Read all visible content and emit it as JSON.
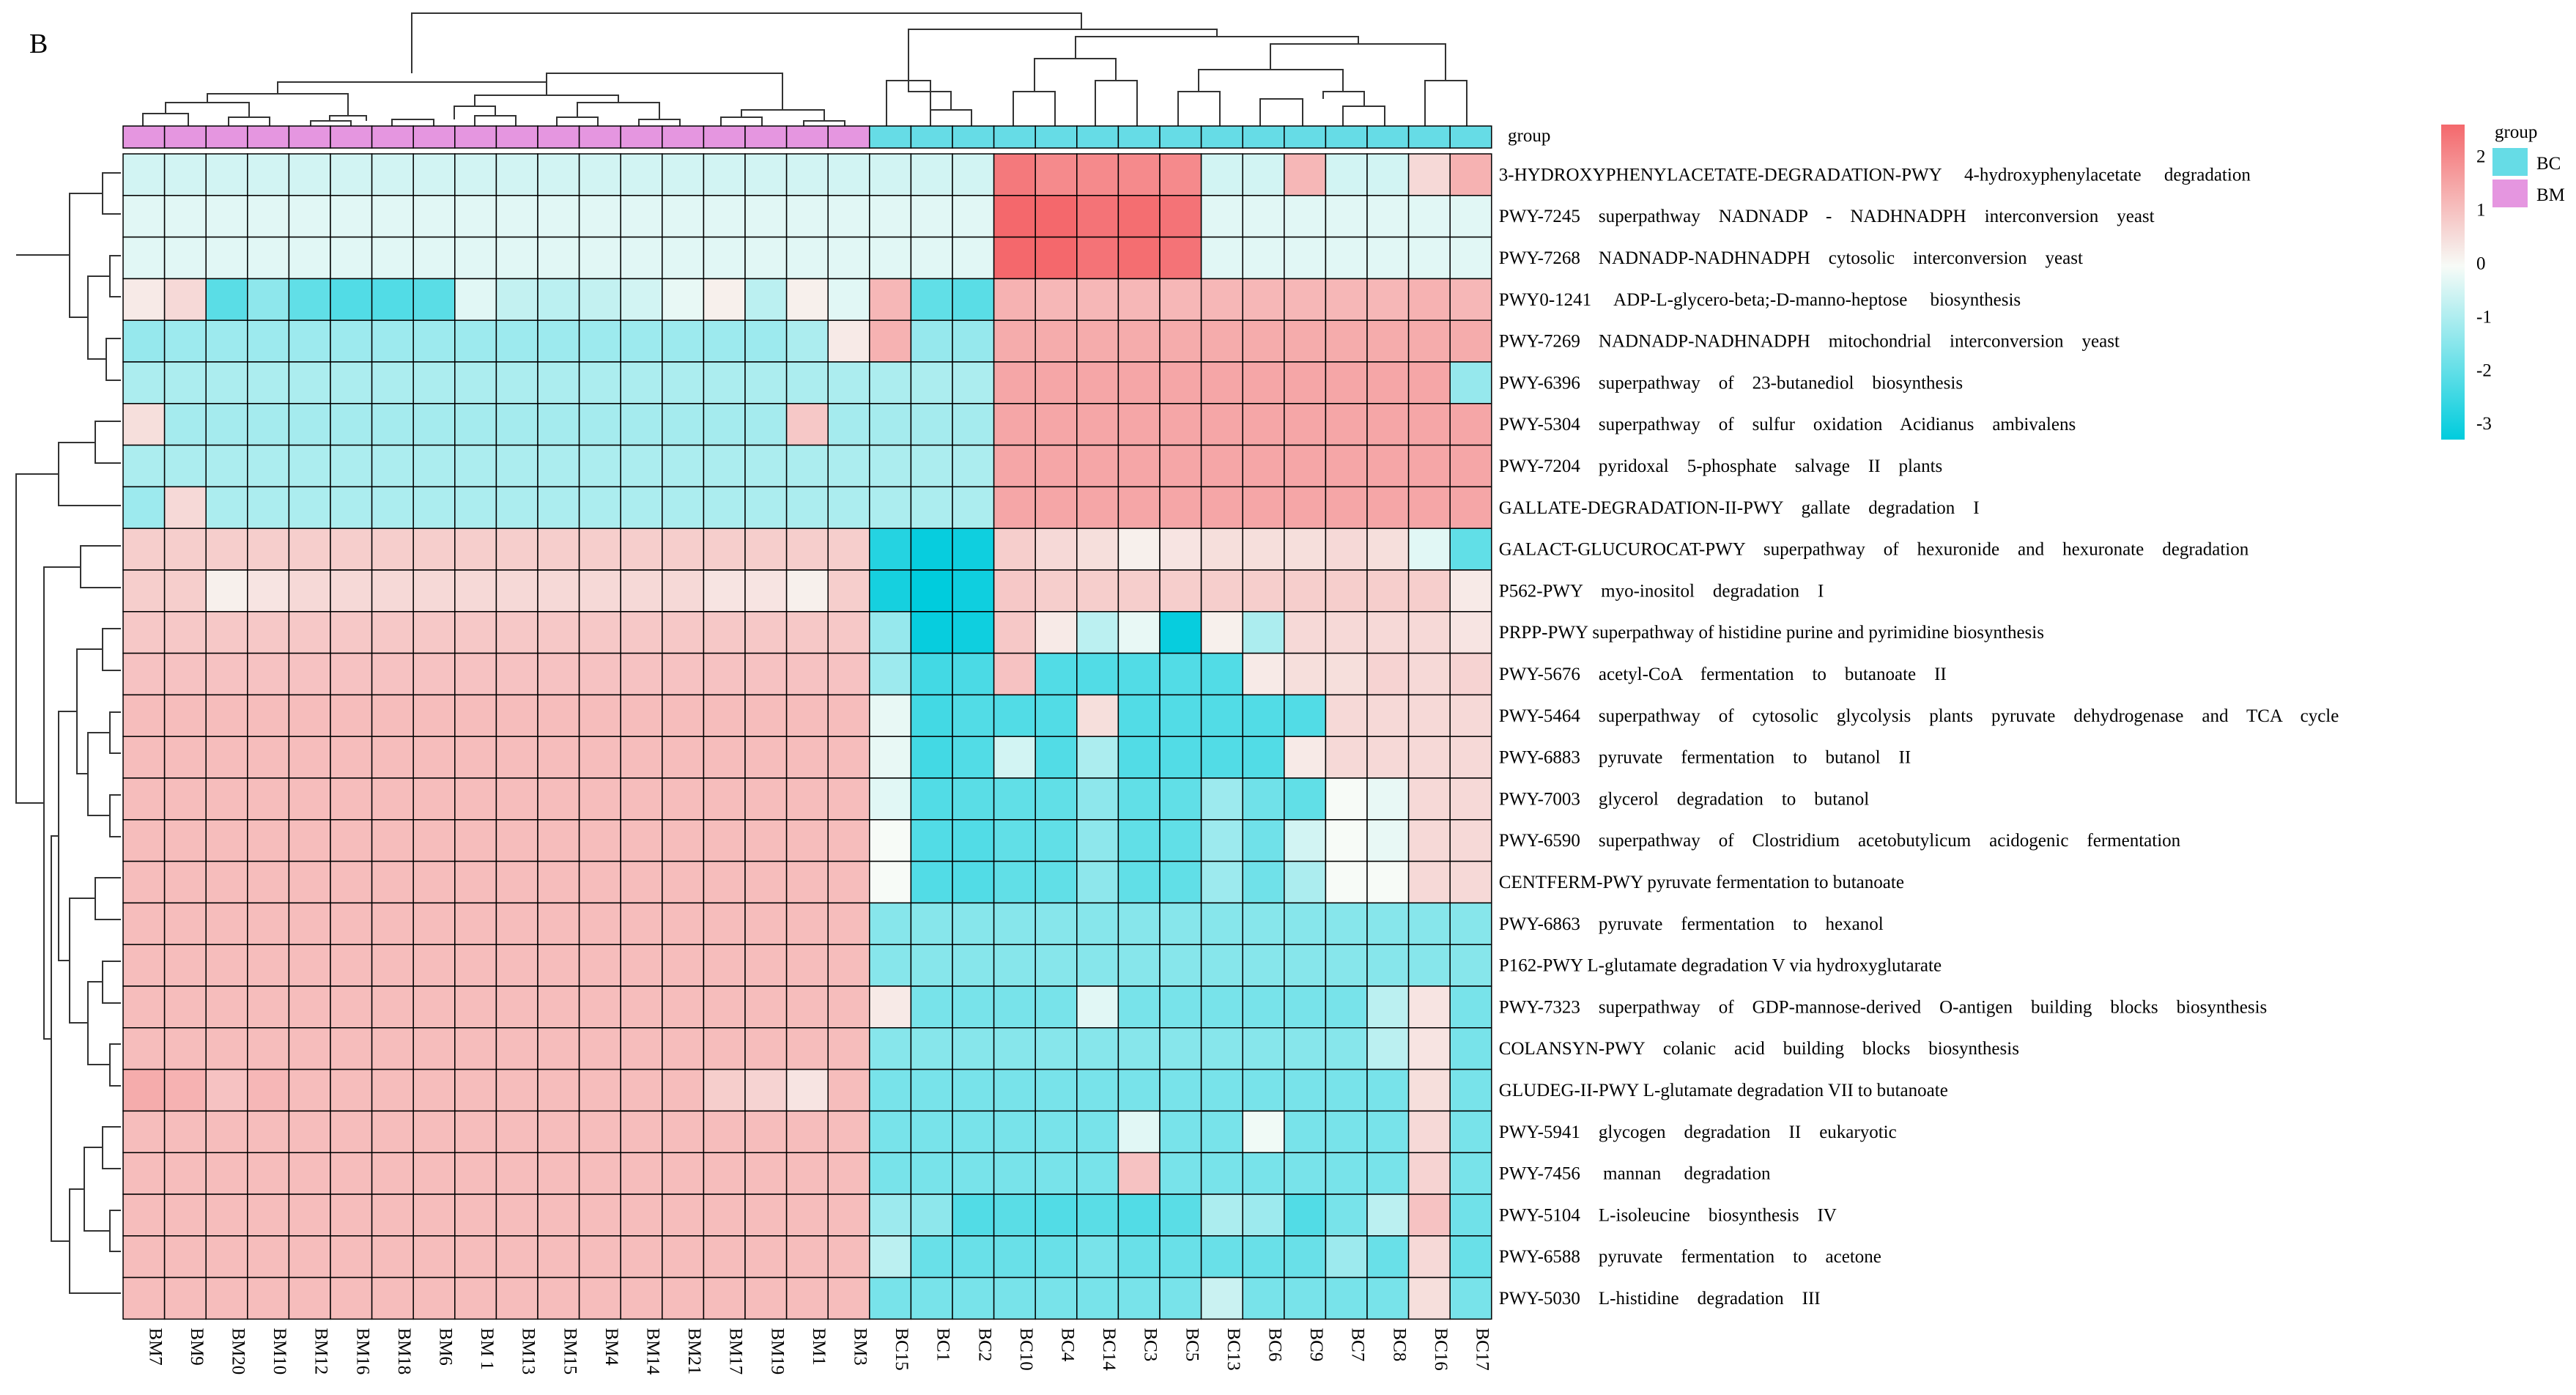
{
  "panel_label": "B",
  "colors": {
    "low": "#00CCDD",
    "mid": "#F7FBF7",
    "high": "#F4686C",
    "group_BC": "#66DCE6",
    "group_BM": "#E596E0",
    "cell_border": "#000000"
  },
  "chart_data": {
    "type": "heatmap",
    "title": "",
    "color_range": [
      -3.3,
      2.6
    ],
    "group_bar_label": "group",
    "group_legend": {
      "title": "group",
      "items": [
        {
          "name": "BC",
          "color": "#66DCE6"
        },
        {
          "name": "BM",
          "color": "#E596E0"
        }
      ]
    },
    "colorbar_ticks": [
      "2",
      "1",
      "0",
      "-1",
      "-2",
      "-3"
    ],
    "colorbar_tick_values": [
      2,
      1,
      0,
      -1,
      -2,
      -3
    ],
    "columns": [
      "BM7",
      "BM9",
      "BM20",
      "BM10",
      "BM12",
      "BM16",
      "BM18",
      "BM6",
      "BM 1",
      "BM13",
      "BM15",
      "BM4",
      "BM14",
      "BM21",
      "BM17",
      "BM19",
      "BM1",
      "BM3",
      "BC15",
      "BC1",
      "BC2",
      "BC10",
      "BC4",
      "BC14",
      "BC3",
      "BC5",
      "BC13",
      "BC6",
      "BC9",
      "BC7",
      "BC8",
      "BC16",
      "BC17"
    ],
    "column_groups": [
      "BM",
      "BM",
      "BM",
      "BM",
      "BM",
      "BM",
      "BM",
      "BM",
      "BM",
      "BM",
      "BM",
      "BM",
      "BM",
      "BM",
      "BM",
      "BM",
      "BM",
      "BM",
      "BC",
      "BC",
      "BC",
      "BC",
      "BC",
      "BC",
      "BC",
      "BC",
      "BC",
      "BC",
      "BC",
      "BC",
      "BC",
      "BC",
      "BC"
    ],
    "rows": [
      "3-HYDROXYPHENYLACETATE-DEGRADATION-PWY     4-hydroxyphenylacetate     degradation",
      "PWY-7245    superpathway    NADNADP    -    NADHNADPH    interconversion    yeast",
      "PWY-7268    NADNADP-NADHNADPH    cytosolic    interconversion    yeast",
      "PWY0-1241     ADP-L-glycero-beta;-D-manno-heptose     biosynthesis",
      "PWY-7269    NADNADP-NADHNADPH    mitochondrial    interconversion    yeast",
      "PWY-6396    superpathway    of    23-butanediol    biosynthesis",
      "PWY-5304    superpathway    of    sulfur    oxidation    Acidianus    ambivalens",
      "PWY-7204    pyridoxal    5-phosphate    salvage    II    plants",
      "GALLATE-DEGRADATION-II-PWY    gallate    degradation    I",
      "GALACT-GLUCUROCAT-PWY    superpathway    of    hexuronide    and    hexuronate    degradation",
      "P562-PWY    myo-inositol    degradation    I",
      "PRPP-PWY superpathway of histidine purine and pyrimidine biosynthesis",
      "PWY-5676    acetyl-CoA    fermentation    to    butanoate    II",
      "PWY-5464    superpathway    of    cytosolic    glycolysis    plants    pyruvate    dehydrogenase    and    TCA    cycle",
      "PWY-6883    pyruvate    fermentation    to    butanol    II",
      "PWY-7003    glycerol    degradation    to    butanol",
      "PWY-6590    superpathway    of    Clostridium    acetobutylicum    acidogenic    fermentation",
      "CENTFERM-PWY pyruvate fermentation to butanoate",
      "PWY-6863    pyruvate    fermentation    to    hexanol",
      "P162-PWY L-glutamate degradation V via hydroxyglutarate",
      "PWY-7323    superpathway    of    GDP-mannose-derived    O-antigen    building    blocks    biosynthesis",
      "COLANSYN-PWY    colanic    acid    building    blocks    biosynthesis",
      "GLUDEG-II-PWY L-glutamate degradation VII to butanoate",
      "PWY-5941    glycogen    degradation    II    eukaryotic",
      "PWY-7456     mannan     degradation",
      "PWY-5104    L-isoleucine    biosynthesis    IV",
      "PWY-6588    pyruvate    fermentation    to    acetone",
      "PWY-5030    L-histidine    degradation    III"
    ],
    "values": [
      [
        -0.5,
        -0.5,
        -0.5,
        -0.5,
        -0.5,
        -0.5,
        -0.5,
        -0.5,
        -0.5,
        -0.5,
        -0.5,
        -0.5,
        -0.5,
        -0.5,
        -0.5,
        -0.5,
        -0.5,
        -0.5,
        -0.5,
        -0.5,
        -0.5,
        2.3,
        2.0,
        2.0,
        2.0,
        2.0,
        -0.5,
        -0.5,
        1.2,
        -0.5,
        -0.5,
        0.6,
        1.3
      ],
      [
        -0.3,
        -0.3,
        -0.3,
        -0.3,
        -0.3,
        -0.3,
        -0.3,
        -0.3,
        -0.3,
        -0.3,
        -0.3,
        -0.3,
        -0.3,
        -0.3,
        -0.3,
        -0.3,
        -0.3,
        -0.3,
        -0.3,
        -0.3,
        -0.3,
        2.6,
        2.6,
        2.4,
        2.5,
        2.4,
        -0.3,
        -0.3,
        -0.3,
        -0.3,
        -0.3,
        -0.3,
        -0.3
      ],
      [
        -0.3,
        -0.3,
        -0.3,
        -0.3,
        -0.3,
        -0.3,
        -0.3,
        -0.3,
        -0.3,
        -0.3,
        -0.3,
        -0.3,
        -0.3,
        -0.3,
        -0.3,
        -0.3,
        -0.3,
        -0.3,
        -0.3,
        -0.3,
        -0.3,
        2.6,
        2.6,
        2.4,
        2.5,
        2.4,
        -0.3,
        -0.3,
        -0.3,
        -0.3,
        -0.3,
        -0.3,
        -0.3
      ],
      [
        0.3,
        0.6,
        -2.1,
        -1.4,
        -2.0,
        -2.2,
        -2.2,
        -2.1,
        -0.3,
        -0.7,
        -0.8,
        -0.7,
        -0.5,
        -0.2,
        0.2,
        -0.8,
        0.2,
        -0.3,
        1.2,
        -2.0,
        -2.1,
        1.3,
        1.2,
        1.2,
        1.2,
        1.2,
        1.2,
        1.2,
        1.2,
        1.2,
        1.2,
        1.3,
        1.2
      ],
      [
        -1.3,
        -1.2,
        -1.2,
        -1.2,
        -1.2,
        -1.2,
        -1.2,
        -1.2,
        -1.2,
        -1.2,
        -1.2,
        -1.2,
        -1.2,
        -1.2,
        -1.2,
        -1.2,
        -1.0,
        0.3,
        1.3,
        -1.3,
        -1.3,
        1.4,
        1.4,
        1.4,
        1.4,
        1.4,
        1.4,
        1.4,
        1.4,
        1.4,
        1.4,
        1.4,
        1.4
      ],
      [
        -1.0,
        -1.0,
        -1.0,
        -1.0,
        -1.0,
        -1.0,
        -1.0,
        -1.0,
        -1.0,
        -1.0,
        -1.0,
        -1.0,
        -1.0,
        -1.0,
        -1.0,
        -1.0,
        -1.0,
        -1.0,
        -1.0,
        -1.0,
        -1.0,
        1.5,
        1.5,
        1.5,
        1.5,
        1.5,
        1.5,
        1.5,
        1.5,
        1.5,
        1.5,
        1.5,
        -1.3
      ],
      [
        0.5,
        -1.1,
        -1.1,
        -1.1,
        -1.1,
        -1.1,
        -1.1,
        -1.1,
        -1.1,
        -1.1,
        -1.1,
        -1.1,
        -1.1,
        -1.1,
        -1.1,
        -1.1,
        0.9,
        -1.1,
        -1.1,
        -1.1,
        -1.1,
        1.5,
        1.5,
        1.5,
        1.5,
        1.5,
        1.5,
        1.5,
        1.5,
        1.5,
        1.5,
        1.5,
        1.5
      ],
      [
        -1.0,
        -1.0,
        -1.0,
        -1.0,
        -1.0,
        -1.0,
        -1.0,
        -1.0,
        -1.0,
        -1.0,
        -1.0,
        -1.0,
        -1.0,
        -1.0,
        -1.0,
        -1.0,
        -1.0,
        -1.0,
        -1.0,
        -1.0,
        -1.0,
        1.5,
        1.5,
        1.5,
        1.5,
        1.5,
        1.5,
        1.5,
        1.5,
        1.5,
        1.5,
        1.5,
        1.5
      ],
      [
        -1.2,
        0.6,
        -1.0,
        -1.0,
        -1.0,
        -1.0,
        -1.0,
        -1.0,
        -1.0,
        -1.0,
        -1.0,
        -1.0,
        -1.0,
        -1.0,
        -1.0,
        -1.0,
        -1.0,
        -1.0,
        -1.0,
        -1.0,
        -1.0,
        1.5,
        1.5,
        1.5,
        1.5,
        1.5,
        1.5,
        1.5,
        1.5,
        1.5,
        1.5,
        1.5,
        1.5
      ],
      [
        0.8,
        0.8,
        0.8,
        0.8,
        0.8,
        0.8,
        0.8,
        0.8,
        0.8,
        0.8,
        0.8,
        0.8,
        0.8,
        0.8,
        0.8,
        0.8,
        0.8,
        0.8,
        -2.8,
        -3.2,
        -3.1,
        0.8,
        0.6,
        0.5,
        0.2,
        0.4,
        0.5,
        0.5,
        0.5,
        0.6,
        0.5,
        -0.3,
        -2.0
      ],
      [
        0.8,
        0.8,
        0.2,
        0.4,
        0.6,
        0.6,
        0.6,
        0.6,
        0.6,
        0.6,
        0.6,
        0.6,
        0.6,
        0.6,
        0.4,
        0.4,
        0.2,
        0.8,
        -3.0,
        -3.3,
        -3.1,
        0.9,
        0.8,
        0.8,
        0.8,
        0.8,
        0.8,
        0.8,
        0.8,
        0.8,
        0.8,
        0.8,
        0.3
      ],
      [
        0.9,
        0.9,
        0.9,
        0.9,
        0.9,
        0.9,
        0.9,
        0.9,
        0.9,
        0.9,
        0.9,
        0.9,
        0.9,
        0.9,
        0.9,
        0.9,
        0.9,
        0.9,
        -1.3,
        -3.2,
        -3.1,
        0.9,
        0.3,
        -0.8,
        -0.2,
        -3.2,
        0.2,
        -1.0,
        0.6,
        0.6,
        0.6,
        0.6,
        0.4
      ],
      [
        1.0,
        1.0,
        1.0,
        1.0,
        1.0,
        1.0,
        1.0,
        1.0,
        1.0,
        1.0,
        1.0,
        1.0,
        1.0,
        1.0,
        1.0,
        1.0,
        1.0,
        1.0,
        -1.2,
        -2.4,
        -2.3,
        1.0,
        -2.2,
        -2.2,
        -2.2,
        -2.2,
        -2.2,
        0.3,
        0.5,
        0.5,
        0.7,
        0.6,
        0.7
      ],
      [
        1.1,
        1.1,
        1.1,
        1.1,
        1.1,
        1.1,
        1.1,
        1.1,
        1.1,
        1.1,
        1.1,
        1.1,
        1.1,
        1.1,
        1.1,
        1.1,
        1.1,
        1.1,
        -0.2,
        -2.4,
        -2.2,
        -2.2,
        -2.2,
        0.5,
        -2.2,
        -2.2,
        -2.2,
        -2.2,
        -2.2,
        0.6,
        0.6,
        0.6,
        0.6
      ],
      [
        1.1,
        1.1,
        1.1,
        1.1,
        1.1,
        1.1,
        1.1,
        1.1,
        1.1,
        1.1,
        1.1,
        1.1,
        1.1,
        1.1,
        1.1,
        1.1,
        1.1,
        1.1,
        -0.2,
        -2.4,
        -2.2,
        -0.5,
        -2.2,
        -1.0,
        -2.2,
        -2.2,
        -2.2,
        -2.2,
        0.3,
        0.6,
        0.6,
        0.6,
        0.6
      ],
      [
        1.1,
        1.1,
        1.1,
        1.1,
        1.1,
        1.1,
        1.1,
        1.1,
        1.1,
        1.1,
        1.1,
        1.1,
        1.1,
        1.1,
        1.1,
        1.1,
        1.1,
        1.1,
        -0.3,
        -2.2,
        -2.1,
        -2.0,
        -2.0,
        -1.4,
        -2.0,
        -2.0,
        -1.2,
        -1.8,
        -2.0,
        0.0,
        -0.2,
        0.6,
        0.6
      ],
      [
        1.1,
        1.1,
        1.1,
        1.1,
        1.1,
        1.1,
        1.1,
        1.1,
        1.1,
        1.1,
        1.1,
        1.1,
        1.1,
        1.1,
        1.1,
        1.1,
        1.1,
        1.1,
        0.0,
        -2.2,
        -2.2,
        -2.0,
        -2.0,
        -1.4,
        -2.0,
        -2.0,
        -1.2,
        -1.8,
        -0.5,
        0.0,
        -0.2,
        0.6,
        0.6
      ],
      [
        1.1,
        1.1,
        1.1,
        1.1,
        1.1,
        1.1,
        1.1,
        1.1,
        1.1,
        1.1,
        1.1,
        1.1,
        1.1,
        1.1,
        1.1,
        1.1,
        1.1,
        1.1,
        0.0,
        -2.2,
        -2.2,
        -2.0,
        -2.0,
        -1.4,
        -2.0,
        -2.0,
        -1.2,
        -1.8,
        -1.0,
        0.0,
        0.0,
        0.6,
        0.6
      ],
      [
        1.1,
        1.1,
        1.1,
        1.1,
        1.1,
        1.1,
        1.1,
        1.1,
        1.1,
        1.1,
        1.1,
        1.1,
        1.1,
        1.1,
        1.1,
        1.1,
        1.1,
        1.1,
        -1.5,
        -1.5,
        -1.5,
        -1.5,
        -1.5,
        -1.5,
        -1.5,
        -1.5,
        -1.5,
        -1.5,
        -1.5,
        -1.5,
        -1.5,
        -1.5,
        -1.5
      ],
      [
        1.1,
        1.1,
        1.1,
        1.1,
        1.1,
        1.1,
        1.1,
        1.1,
        1.1,
        1.1,
        1.1,
        1.1,
        1.1,
        1.1,
        1.1,
        1.1,
        1.1,
        1.1,
        -1.5,
        -1.5,
        -1.5,
        -1.5,
        -1.5,
        -1.5,
        -1.5,
        -1.5,
        -1.5,
        -1.5,
        -1.5,
        -1.5,
        -1.5,
        -1.5,
        -1.5
      ],
      [
        1.1,
        1.1,
        1.1,
        1.1,
        1.1,
        1.1,
        1.1,
        1.1,
        1.1,
        1.1,
        1.1,
        1.1,
        1.1,
        1.1,
        1.1,
        1.1,
        1.1,
        1.1,
        0.3,
        -1.7,
        -1.7,
        -1.7,
        -1.7,
        -0.3,
        -1.7,
        -1.7,
        -1.7,
        -1.7,
        -1.7,
        -1.7,
        -0.8,
        0.4,
        -1.7
      ],
      [
        1.1,
        1.1,
        1.1,
        1.1,
        1.1,
        1.1,
        1.1,
        1.1,
        1.1,
        1.1,
        1.1,
        1.1,
        1.1,
        1.1,
        1.1,
        1.1,
        1.1,
        1.1,
        -1.5,
        -1.5,
        -1.5,
        -1.5,
        -1.5,
        -1.5,
        -1.5,
        -1.5,
        -1.5,
        -1.5,
        -1.5,
        -1.5,
        -0.8,
        0.4,
        -1.7
      ],
      [
        1.4,
        1.3,
        1.0,
        1.2,
        1.1,
        1.1,
        1.1,
        1.1,
        1.1,
        1.1,
        1.1,
        1.1,
        1.1,
        1.1,
        0.8,
        0.7,
        0.4,
        1.1,
        -1.7,
        -1.7,
        -1.7,
        -1.7,
        -1.7,
        -1.7,
        -1.7,
        -1.7,
        -1.7,
        -1.7,
        -1.7,
        -1.7,
        -1.7,
        0.5,
        -1.7
      ],
      [
        1.1,
        1.1,
        1.1,
        1.1,
        1.1,
        1.1,
        1.1,
        1.1,
        1.1,
        1.1,
        1.1,
        1.1,
        1.1,
        1.1,
        1.1,
        1.1,
        1.1,
        1.1,
        -1.7,
        -1.7,
        -1.7,
        -1.7,
        -1.7,
        -1.7,
        -0.3,
        -1.7,
        -1.7,
        -0.1,
        -1.7,
        -1.7,
        -1.7,
        0.6,
        -1.7
      ],
      [
        1.1,
        1.1,
        1.1,
        1.1,
        1.1,
        1.1,
        1.1,
        1.1,
        1.1,
        1.1,
        1.1,
        1.1,
        1.1,
        1.1,
        1.1,
        1.1,
        1.1,
        1.1,
        -1.7,
        -1.7,
        -1.7,
        -1.7,
        -1.7,
        -1.7,
        1.0,
        -1.7,
        -1.7,
        -1.7,
        -1.7,
        -1.7,
        -1.7,
        0.7,
        -1.7
      ],
      [
        1.1,
        1.1,
        1.1,
        1.1,
        1.1,
        1.1,
        1.1,
        1.1,
        1.1,
        1.1,
        1.1,
        1.1,
        1.1,
        1.1,
        1.1,
        1.1,
        1.1,
        1.1,
        -1.2,
        -1.4,
        -2.2,
        -2.1,
        -2.2,
        -2.1,
        -2.2,
        -2.1,
        -1.0,
        -1.2,
        -2.2,
        -1.7,
        -0.8,
        1.0,
        -1.8
      ],
      [
        1.1,
        1.1,
        1.1,
        1.1,
        1.1,
        1.1,
        1.1,
        1.1,
        1.1,
        1.1,
        1.1,
        1.1,
        1.1,
        1.1,
        1.1,
        1.1,
        1.1,
        1.1,
        -0.8,
        -1.9,
        -1.9,
        -1.9,
        -1.9,
        -1.7,
        -1.9,
        -1.9,
        -1.9,
        -1.9,
        -1.9,
        -1.2,
        -1.9,
        0.6,
        -1.9
      ],
      [
        1.1,
        1.1,
        1.1,
        1.1,
        1.1,
        1.1,
        1.1,
        1.1,
        1.1,
        1.1,
        1.1,
        1.1,
        1.1,
        1.1,
        1.1,
        1.1,
        1.1,
        1.1,
        -1.7,
        -1.7,
        -1.7,
        -1.7,
        -1.7,
        -1.7,
        -1.7,
        -1.7,
        -0.6,
        -1.7,
        -1.7,
        -1.7,
        -1.7,
        0.5,
        -1.7
      ]
    ]
  }
}
